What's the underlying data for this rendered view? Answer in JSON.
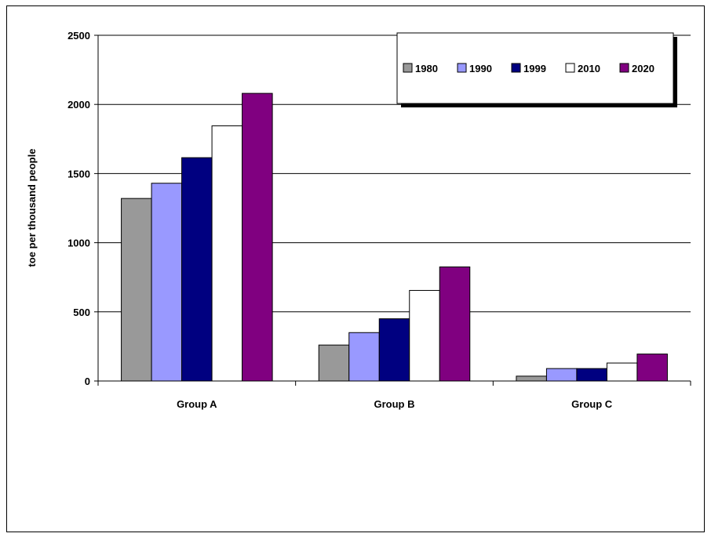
{
  "chart_data": {
    "type": "bar",
    "title": "",
    "xlabel": "",
    "ylabel": "toe per thousand people",
    "ylim": [
      0,
      2500
    ],
    "yticks": [
      0,
      500,
      1000,
      1500,
      2000,
      2500
    ],
    "categories": [
      "Group A",
      "Group B",
      "Group C"
    ],
    "series": [
      {
        "name": "1980",
        "color": "#999999",
        "values": [
          1320,
          260,
          35
        ]
      },
      {
        "name": "1990",
        "color": "#9999ff",
        "values": [
          1430,
          350,
          90
        ]
      },
      {
        "name": "1999",
        "color": "#000080",
        "values": [
          1615,
          450,
          90
        ]
      },
      {
        "name": "2010",
        "color": "#ffffff",
        "values": [
          1845,
          655,
          130
        ]
      },
      {
        "name": "2020",
        "color": "#800080",
        "values": [
          2080,
          825,
          195
        ]
      }
    ],
    "grid": true,
    "legend": "top-right"
  }
}
